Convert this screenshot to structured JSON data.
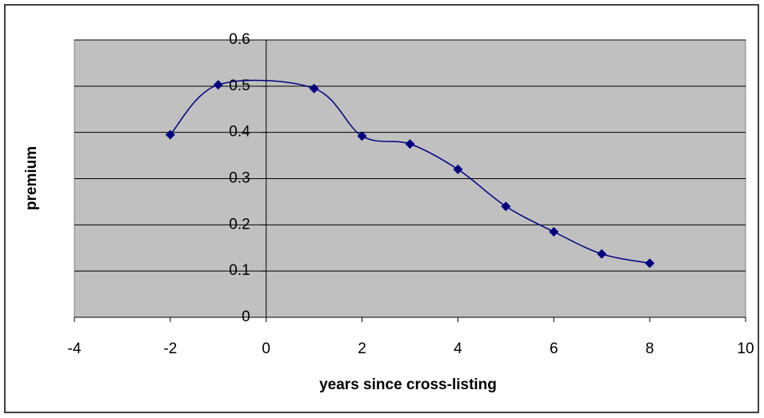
{
  "chart_data": {
    "type": "scatter",
    "x_label": "years since cross-listing",
    "y_label": "premium",
    "x": [
      -2,
      -1,
      1,
      2,
      3,
      4,
      5,
      6,
      7,
      8
    ],
    "values": [
      0.395,
      0.503,
      0.495,
      0.392,
      0.375,
      0.32,
      0.24,
      0.185,
      0.137,
      0.117
    ],
    "color": "#000080",
    "smooth": true,
    "marker": "diamond",
    "xlim": [
      -4,
      10
    ],
    "xticks": [
      -4,
      -2,
      0,
      2,
      4,
      6,
      8,
      10
    ],
    "ylim": [
      0,
      0.6
    ],
    "yticks": [
      0,
      0.1,
      0.2,
      0.3,
      0.4,
      0.5,
      0.6
    ],
    "grid": true
  }
}
